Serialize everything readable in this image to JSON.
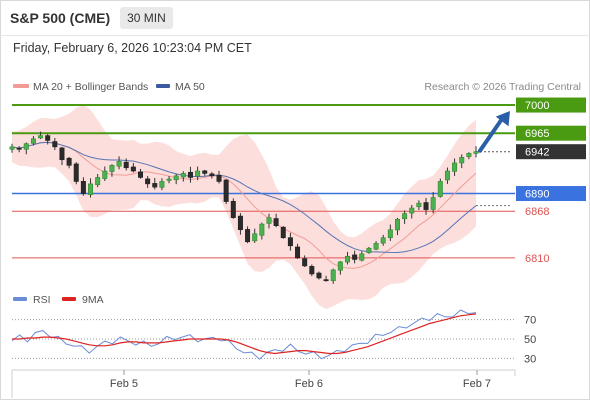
{
  "header": {
    "title": "S&P 500 (CME)",
    "timeframe": "30 MIN"
  },
  "datetime": "Friday, February 6, 2026 10:23:04 PM CET",
  "legend": {
    "ma20_bb": "MA 20 + Bollinger Bands",
    "ma50": "MA 50",
    "credit": "Research © 2026 Trading Central"
  },
  "rsi_legend": {
    "rsi": "RSI",
    "ma9": "9MA"
  },
  "colors": {
    "resistance": "#4a9a12",
    "pivot": "#3a72e0",
    "support": "#e05353",
    "current": "#333333",
    "arrow": "#2a5fa8",
    "bollinger": "#fbd9d6",
    "ma20": "#f29b96",
    "ma50": "#5573b5",
    "rsi": "#6b8cd6",
    "rsi_ma": "#dd2222"
  },
  "chart_data": [
    {
      "type": "candlestick",
      "title": "S&P 500 (CME)",
      "timeframe": "30 MIN",
      "ylim": [
        6780,
        7010
      ],
      "x_labels": [
        "Feb 5",
        "Feb 6",
        "Feb 7"
      ],
      "levels": [
        {
          "label": "7000",
          "value": 7000,
          "kind": "resistance"
        },
        {
          "label": "6965",
          "value": 6965,
          "kind": "resistance"
        },
        {
          "label": "6942",
          "value": 6942,
          "kind": "current"
        },
        {
          "label": "6890",
          "value": 6890,
          "kind": "pivot"
        },
        {
          "label": "6868",
          "value": 6868,
          "kind": "support"
        },
        {
          "label": "6810",
          "value": 6810,
          "kind": "support"
        }
      ],
      "close_path": [
        6948,
        6945,
        6952,
        6958,
        6962,
        6956,
        6948,
        6932,
        6925,
        6905,
        6890,
        6902,
        6910,
        6918,
        6925,
        6930,
        6922,
        6918,
        6910,
        6902,
        6898,
        6905,
        6908,
        6912,
        6915,
        6910,
        6918,
        6915,
        6912,
        6905,
        6880,
        6860,
        6845,
        6830,
        6840,
        6852,
        6860,
        6850,
        6835,
        6825,
        6810,
        6800,
        6790,
        6785,
        6782,
        6795,
        6805,
        6812,
        6808,
        6815,
        6822,
        6828,
        6835,
        6845,
        6858,
        6865,
        6872,
        6878,
        6870,
        6885,
        6905,
        6918,
        6928,
        6935,
        6940,
        6942
      ],
      "series": [
        {
          "name": "MA 20 + Bollinger Bands"
        },
        {
          "name": "MA 50"
        }
      ],
      "projection": {
        "from": 6942,
        "to": 7000
      }
    },
    {
      "type": "line",
      "series": [
        {
          "name": "RSI"
        },
        {
          "name": "9MA"
        }
      ],
      "ylim": [
        20,
        80
      ],
      "y_ticks": [
        "70",
        "50",
        "30"
      ],
      "rsi_path": [
        48,
        52,
        50,
        55,
        58,
        54,
        50,
        46,
        44,
        40,
        38,
        42,
        46,
        48,
        50,
        48,
        46,
        45,
        44,
        46,
        50,
        52,
        51,
        53,
        50,
        48,
        52,
        50,
        46,
        42,
        36,
        34,
        32,
        35,
        38,
        40,
        42,
        38,
        36,
        34,
        32,
        33,
        36,
        40,
        42,
        45,
        48,
        52,
        55,
        58,
        60,
        64,
        66,
        70,
        72,
        74,
        73,
        75,
        77,
        78,
        78
      ],
      "rsi_ma_path": [
        50,
        50,
        51,
        51,
        52,
        52,
        51,
        50,
        48,
        46,
        44,
        43,
        43,
        44,
        46,
        47,
        47,
        46,
        46,
        46,
        47,
        48,
        49,
        50,
        50,
        50,
        50,
        50,
        49,
        47,
        44,
        41,
        38,
        36,
        35,
        36,
        37,
        38,
        38,
        37,
        36,
        35,
        35,
        36,
        38,
        40,
        42,
        45,
        48,
        51,
        54,
        57,
        60,
        63,
        66,
        68,
        70,
        72,
        74,
        75,
        76
      ]
    }
  ]
}
